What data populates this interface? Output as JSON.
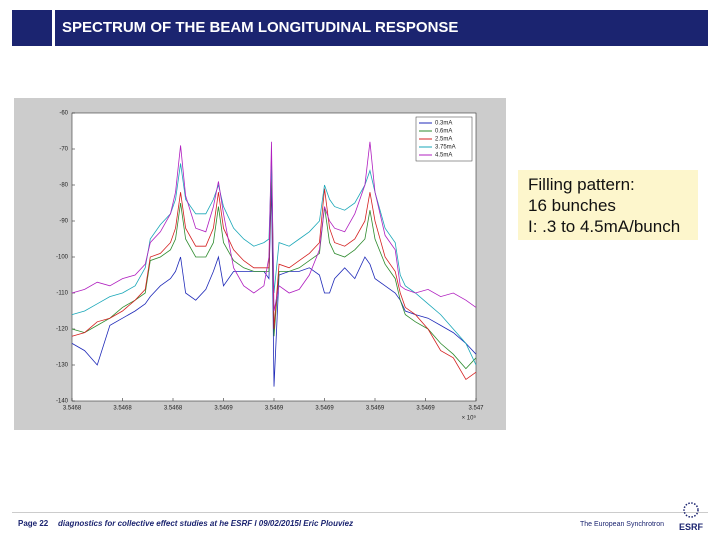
{
  "header": {
    "title": "SPECTRUM OF THE BEAM LONGITUDINAL RESPONSE"
  },
  "chart_data": {
    "type": "line",
    "x": [
      3.5468,
      3.546805,
      3.54681,
      3.546815,
      3.54682,
      3.546825,
      3.546829,
      3.546831,
      3.546835,
      3.546839,
      3.546841,
      3.546843,
      3.546845,
      3.546849,
      3.546853,
      3.546856,
      3.546858,
      3.54686,
      3.546864,
      3.546868,
      3.546872,
      3.546876,
      3.546878,
      3.546879,
      3.54688,
      3.546882,
      3.546886,
      3.54689,
      3.546894,
      3.546898,
      3.5469,
      3.546902,
      3.546904,
      3.546908,
      3.546912,
      3.546916,
      3.546918,
      3.54692,
      3.546924,
      3.546928,
      3.54693,
      3.546932,
      3.546936,
      3.546941,
      3.546946,
      3.546951,
      3.546956,
      3.54696
    ],
    "series": [
      {
        "name": "0.3mA",
        "color": "#1f2ab8",
        "values": [
          -124,
          -126,
          -130,
          -119,
          -117,
          -115,
          -113,
          -111,
          -108,
          -106,
          -104,
          -100,
          -110,
          -112,
          -109,
          -104,
          -100,
          -108,
          -104,
          -104,
          -104,
          -104,
          -106,
          -80,
          -136,
          -105,
          -104,
          -104,
          -103,
          -105,
          -110,
          -110,
          -106,
          -103,
          -106,
          -100,
          -102,
          -106,
          -108,
          -110,
          -112,
          -115,
          -116,
          -117,
          -119,
          -121,
          -124,
          -127
        ]
      },
      {
        "name": "0.6mA",
        "color": "#2e8b2e",
        "values": [
          -120,
          -121,
          -119,
          -117,
          -114,
          -112,
          -110,
          -101,
          -100,
          -98,
          -95,
          -85,
          -95,
          -100,
          -100,
          -96,
          -86,
          -96,
          -101,
          -103,
          -104,
          -104,
          -104,
          -74,
          -122,
          -104,
          -104,
          -103,
          -101,
          -99,
          -86,
          -96,
          -99,
          -100,
          -98,
          -95,
          -87,
          -95,
          -102,
          -106,
          -112,
          -116,
          -118,
          -120,
          -124,
          -127,
          -131,
          -128
        ]
      },
      {
        "name": "2.5mA",
        "color": "#d42020",
        "values": [
          -122,
          -121,
          -118,
          -117,
          -115,
          -112,
          -109,
          -100,
          -99,
          -96,
          -92,
          -82,
          -92,
          -97,
          -97,
          -92,
          -82,
          -92,
          -98,
          -101,
          -103,
          -103,
          -103,
          -72,
          -120,
          -102,
          -103,
          -101,
          -99,
          -96,
          -81,
          -92,
          -96,
          -97,
          -95,
          -90,
          -82,
          -90,
          -100,
          -104,
          -110,
          -114,
          -116,
          -120,
          -126,
          -128,
          -134,
          -132
        ]
      },
      {
        "name": "3.75mA",
        "color": "#1aa7b8",
        "values": [
          -116,
          -115,
          -113,
          -111,
          -110,
          -108,
          -103,
          -95,
          -91,
          -88,
          -84,
          -74,
          -84,
          -88,
          -88,
          -84,
          -80,
          -86,
          -92,
          -95,
          -97,
          -96,
          -95,
          -74,
          -110,
          -96,
          -97,
          -95,
          -93,
          -90,
          -80,
          -84,
          -86,
          -87,
          -85,
          -80,
          -76,
          -82,
          -92,
          -96,
          -105,
          -108,
          -110,
          -113,
          -116,
          -120,
          -124,
          -130
        ]
      },
      {
        "name": "4.5mA",
        "color": "#b020c0",
        "values": [
          -110,
          -109,
          -107,
          -108,
          -106,
          -105,
          -102,
          -96,
          -93,
          -88,
          -82,
          -69,
          -83,
          -92,
          -93,
          -86,
          -79,
          -88,
          -103,
          -108,
          -110,
          -108,
          -100,
          -68,
          -115,
          -108,
          -110,
          -109,
          -105,
          -98,
          -86,
          -90,
          -92,
          -93,
          -88,
          -80,
          -68,
          -82,
          -94,
          -98,
          -108,
          -109,
          -110,
          -109,
          -111,
          -110,
          -112,
          -114
        ]
      }
    ],
    "xlim": [
      3.5468,
      3.54696
    ],
    "xticks": [
      {
        "value": 3.5468,
        "label": "3.5468"
      },
      {
        "value": 3.54682,
        "label": "3.5468"
      },
      {
        "value": 3.54684,
        "label": "3.5468"
      },
      {
        "value": 3.54686,
        "label": "3.5469"
      },
      {
        "value": 3.54688,
        "label": "3.5469"
      },
      {
        "value": 3.5469,
        "label": "3.5469"
      },
      {
        "value": 3.54692,
        "label": "3.5469"
      },
      {
        "value": 3.54694,
        "label": "3.5469"
      },
      {
        "value": 3.54696,
        "label": "3.547"
      }
    ],
    "x_multiplier": "× 10⁹",
    "ylim": [
      -140,
      -60
    ],
    "yticks": [
      -140,
      -130,
      -120,
      -110,
      -100,
      -90,
      -80,
      -70,
      -60
    ],
    "grid": false,
    "legend": "top-right"
  },
  "note": {
    "lines": [
      "Filling pattern:",
      "16 bunches",
      "I: .3 to 4.5mA/bunch"
    ]
  },
  "footer": {
    "page": "Page 22",
    "text": "diagnostics for collective effect studies at he ESRF l 09/02/2015l  Eric Plouviez",
    "organization": "The European Synchrotron",
    "logo": "ESRF"
  }
}
